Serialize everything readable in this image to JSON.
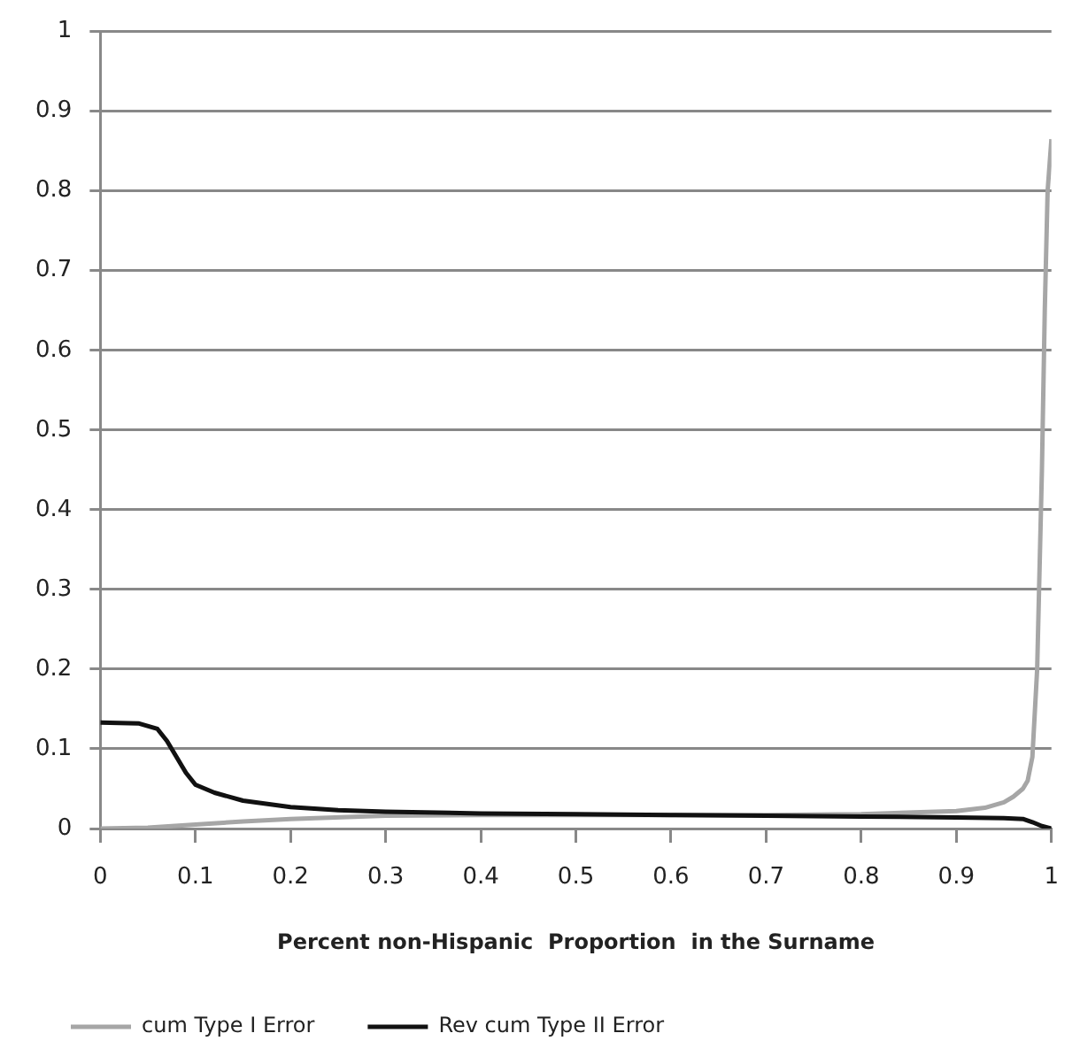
{
  "chart_data": {
    "type": "line",
    "xlabel": "Percent non-Hispanic  Proportion  in the Surname",
    "xlim": [
      0,
      1
    ],
    "xticks": [
      0,
      0.1,
      0.2,
      0.3,
      0.4,
      0.5,
      0.6,
      0.7,
      0.8,
      0.9,
      1
    ],
    "ylim": [
      0,
      1
    ],
    "yticks": [
      0,
      0.1,
      0.2,
      0.3,
      0.4,
      0.5,
      0.6,
      0.7,
      0.8,
      0.9,
      1
    ],
    "grid": "y",
    "legend": "bottom",
    "marker": "none",
    "line_style": "solid",
    "series": [
      {
        "name": "cum Type I Error",
        "color": "#a6a6a6",
        "x": [
          0,
          0.05,
          0.1,
          0.15,
          0.2,
          0.3,
          0.4,
          0.5,
          0.6,
          0.7,
          0.8,
          0.9,
          0.93,
          0.95,
          0.96,
          0.97,
          0.975,
          0.98,
          0.985,
          0.99,
          0.993,
          0.996,
          1
        ],
        "values": [
          0,
          0.001,
          0.005,
          0.009,
          0.012,
          0.016,
          0.017,
          0.017,
          0.017,
          0.017,
          0.018,
          0.022,
          0.026,
          0.033,
          0.04,
          0.05,
          0.06,
          0.09,
          0.2,
          0.45,
          0.65,
          0.8,
          0.865
        ]
      },
      {
        "name": "Rev cum Type II Error",
        "color": "#111111",
        "x": [
          0,
          0.04,
          0.06,
          0.07,
          0.08,
          0.09,
          0.1,
          0.12,
          0.15,
          0.2,
          0.25,
          0.3,
          0.4,
          0.5,
          0.6,
          0.7,
          0.8,
          0.9,
          0.95,
          0.97,
          0.98,
          0.99,
          1
        ],
        "values": [
          0.133,
          0.132,
          0.125,
          0.11,
          0.09,
          0.07,
          0.055,
          0.045,
          0.035,
          0.027,
          0.023,
          0.021,
          0.019,
          0.018,
          0.017,
          0.016,
          0.015,
          0.014,
          0.013,
          0.012,
          0.008,
          0.003,
          0
        ]
      }
    ]
  }
}
